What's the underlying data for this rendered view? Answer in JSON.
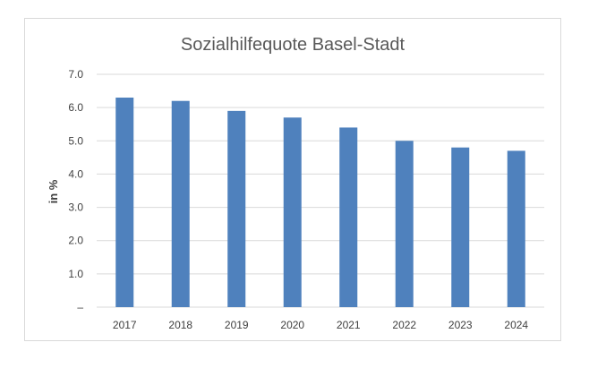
{
  "chart_data": {
    "type": "bar",
    "title": "Sozialhilfequote Basel-Stadt",
    "xlabel": "",
    "ylabel": "in %",
    "categories": [
      "2017",
      "2018",
      "2019",
      "2020",
      "2021",
      "2022",
      "2023",
      "2024"
    ],
    "values": [
      6.3,
      6.2,
      5.9,
      5.7,
      5.4,
      5.0,
      4.8,
      4.7
    ],
    "ylim": [
      0,
      7
    ],
    "y_ticks": [
      "–",
      "1.0",
      "2.0",
      "3.0",
      "4.0",
      "5.0",
      "6.0",
      "7.0"
    ],
    "grid": true,
    "bar_color": "#4f81bd",
    "grid_color": "#d9d9d9"
  }
}
